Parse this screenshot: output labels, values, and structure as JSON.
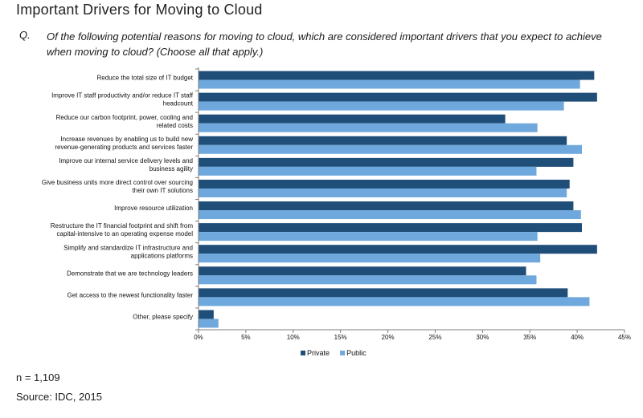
{
  "header": {
    "title": "Important Drivers for Moving to Cloud",
    "question_label": "Q.",
    "question_text": "Of the following potential reasons for moving to cloud, which are considered important drivers that you expect to achieve when moving to cloud? (Choose all that apply.)"
  },
  "footer": {
    "sample": "n = 1,109",
    "source": "Source: IDC, 2015"
  },
  "colors": {
    "private": "#1f4e79",
    "public": "#6fa8dc",
    "axis": "#7f7f7f"
  },
  "chart_data": {
    "type": "bar",
    "orientation": "horizontal",
    "title": "",
    "xlabel": "",
    "ylabel": "",
    "xlim": [
      0,
      45
    ],
    "x_unit": "%",
    "grid": false,
    "legend_position": "bottom",
    "ticks": [
      "0%",
      "5%",
      "10%",
      "15%",
      "20%",
      "25%",
      "30%",
      "35%",
      "40%",
      "45%"
    ],
    "categories": [
      [
        "Reduce the total size of IT budget"
      ],
      [
        "Improve IT staff productivity and/or reduce IT staff",
        "headcount"
      ],
      [
        "Reduce our carbon footprint, power, cooling and",
        "related costs"
      ],
      [
        "Increase revenues by enabling us to build new",
        "revenue-generating products and services faster"
      ],
      [
        "Improve our internal service delivery levels and",
        "business agility"
      ],
      [
        "Give business units more direct control over sourcing",
        "their own IT solutions"
      ],
      [
        "Improve resource utilization"
      ],
      [
        "Restructure the IT financial footprint and shift from",
        "capital-intensive to an operating expense model"
      ],
      [
        "Simplify and standardize IT infrastructure and",
        "applications platforms"
      ],
      [
        "Demonstrate that we are technology leaders"
      ],
      [
        "Get access to the newest functionality faster"
      ],
      [
        "Other, please specify"
      ]
    ],
    "series": [
      {
        "name": "Private",
        "values": [
          41.8,
          42.1,
          32.4,
          38.9,
          39.6,
          39.2,
          39.6,
          40.5,
          42.1,
          34.6,
          39.0,
          1.6
        ]
      },
      {
        "name": "Public",
        "values": [
          40.3,
          38.6,
          35.8,
          40.5,
          35.7,
          38.9,
          40.4,
          35.8,
          36.1,
          35.7,
          41.3,
          2.1
        ]
      }
    ]
  }
}
